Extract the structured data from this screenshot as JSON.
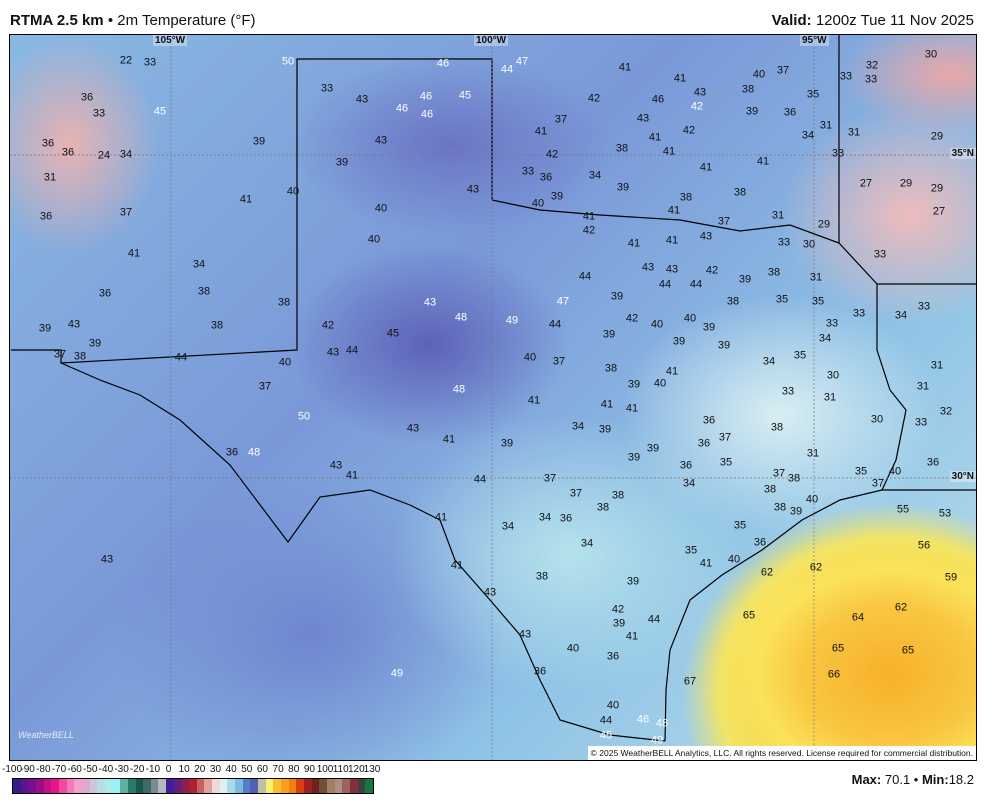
{
  "header": {
    "model": "RTMA 2.5 km",
    "separator": "•",
    "field": "2m Temperature (°F)",
    "valid_label": "Valid:",
    "valid_time": "1200z Tue 11 Nov 2025"
  },
  "map": {
    "lon_labels": [
      "105°W",
      "100°W",
      "95°W"
    ],
    "lat_labels": [
      "35°N",
      "30°N"
    ],
    "copyright": "© 2025 WeatherBELL Analytics, LLC. All rights reserved. License required for commercial distribution.",
    "logo": "WeatherBELL",
    "temperatures": [
      "22",
      "33",
      "50",
      "36",
      "33",
      "45",
      "36",
      "36",
      "24",
      "34",
      "31",
      "39",
      "33",
      "43",
      "46",
      "46",
      "46",
      "45",
      "46",
      "44",
      "47",
      "43",
      "39",
      "40",
      "41",
      "36",
      "37",
      "40",
      "40",
      "43",
      "41",
      "34",
      "36",
      "38",
      "38",
      "38",
      "43",
      "39",
      "39",
      "37",
      "38",
      "44",
      "40",
      "42",
      "43",
      "44",
      "45",
      "43",
      "48",
      "49",
      "44",
      "47",
      "37",
      "50",
      "48",
      "43",
      "41",
      "39",
      "41",
      "40",
      "37",
      "36",
      "48",
      "43",
      "41",
      "44",
      "37",
      "37",
      "38",
      "38",
      "41",
      "34",
      "34",
      "36",
      "34",
      "41",
      "43",
      "38",
      "39",
      "43",
      "43",
      "40",
      "36",
      "42",
      "39",
      "41",
      "44",
      "36",
      "49",
      "40",
      "44",
      "45",
      "46",
      "48",
      "49",
      "41",
      "41",
      "43",
      "46",
      "42",
      "42",
      "37",
      "43",
      "41",
      "42",
      "41",
      "38",
      "41",
      "42",
      "41",
      "41",
      "33",
      "36",
      "34",
      "39",
      "39",
      "40",
      "38",
      "38",
      "41",
      "41",
      "42",
      "37",
      "43",
      "41",
      "41",
      "31",
      "29",
      "33",
      "30",
      "33",
      "43",
      "43",
      "42",
      "44",
      "44",
      "44",
      "39",
      "38",
      "31",
      "39",
      "38",
      "35",
      "35",
      "33",
      "33",
      "34",
      "33",
      "42",
      "40",
      "40",
      "39",
      "39",
      "39",
      "39",
      "34",
      "35",
      "34",
      "38",
      "41",
      "40",
      "39",
      "30",
      "31",
      "31",
      "33",
      "31",
      "41",
      "41",
      "32",
      "36",
      "30",
      "33",
      "38",
      "34",
      "39",
      "37",
      "36",
      "39",
      "39",
      "31",
      "35",
      "36",
      "36",
      "34",
      "37",
      "38",
      "35",
      "37",
      "40",
      "38",
      "38",
      "39",
      "40",
      "55",
      "53",
      "35",
      "36",
      "56",
      "35",
      "41",
      "40",
      "62",
      "62",
      "59",
      "62",
      "65",
      "64",
      "65",
      "65",
      "66",
      "67",
      "37",
      "40",
      "38",
      "33",
      "33",
      "32",
      "30",
      "35",
      "39",
      "36",
      "31",
      "34",
      "31",
      "33",
      "29",
      "27",
      "29",
      "29",
      "27"
    ]
  },
  "colorbar": {
    "ticks": [
      "-100",
      "-90",
      "-80",
      "-70",
      "-60",
      "-50",
      "-40",
      "-30",
      "-20",
      "-10",
      "0",
      "10",
      "20",
      "30",
      "40",
      "50",
      "60",
      "70",
      "80",
      "90",
      "100",
      "110",
      "120",
      "130"
    ],
    "colors": [
      "#3a1a8a",
      "#5a1590",
      "#7a1090",
      "#9a0e88",
      "#c0128a",
      "#e8148a",
      "#f04aa0",
      "#f27ab8",
      "#f4a0c8",
      "#e0a8d0",
      "#c8c8d8",
      "#b8dce0",
      "#a8ecec",
      "#98f4f4",
      "#5fb0a0",
      "#2a7a6a",
      "#145848",
      "#3a6a6a",
      "#7a8a90",
      "#b0b8c0",
      "#40209a",
      "#602080",
      "#8a2050",
      "#b02030",
      "#c86060",
      "#e0a0a0",
      "#f0d8d8",
      "#e0f0f0",
      "#a8dce8",
      "#80b8e0",
      "#5080c8",
      "#5060b0",
      "#c0c0a0",
      "#f8f070",
      "#f8c030",
      "#f8a020",
      "#f08010",
      "#d84010",
      "#a02020",
      "#702020",
      "#705030",
      "#a08060",
      "#b09080",
      "#a06060",
      "#803040",
      "#404040",
      "#107840"
    ],
    "max_label": "Max:",
    "max_value": "70.1",
    "min_label": "Min:",
    "min_value": "18.2"
  }
}
